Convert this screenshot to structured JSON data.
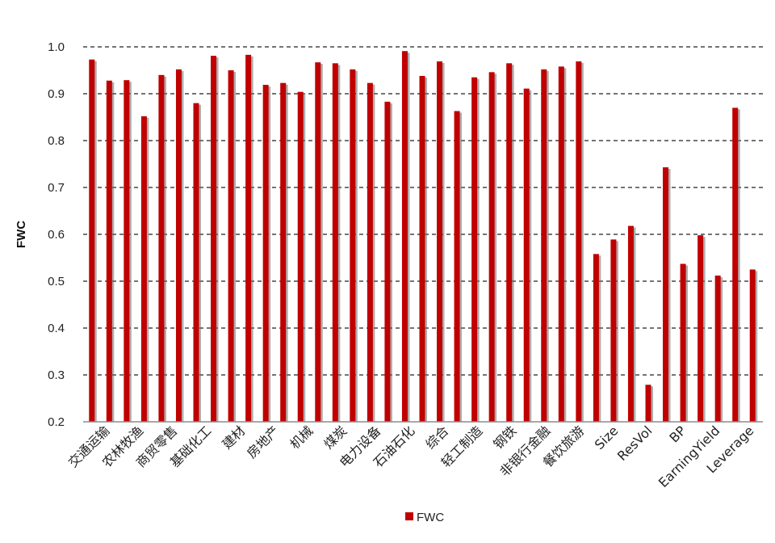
{
  "colors": {
    "bar": "#c00000",
    "bar_shadow": "#6b6b6b",
    "grid": "#222222",
    "axis": "#8c8c8c"
  },
  "chart_data": {
    "type": "bar",
    "title": "",
    "ylabel": "FWC",
    "xlabel": "",
    "ylim": [
      0.2,
      1.0
    ],
    "yticks": [
      "0.2",
      "0.3",
      "0.4",
      "0.5",
      "0.6",
      "0.7",
      "0.8",
      "0.9",
      "1.0"
    ],
    "grid": "horizontal dashed",
    "legend_position": "bottom",
    "tick_label_rotation": "45",
    "tick_labels": [
      "交通运输",
      "农林牧渔",
      "商贸零售",
      "基础化工",
      "建材",
      "房地产",
      "机械",
      "煤炭",
      "电力设备",
      "石油石化",
      "综合",
      "轻工制造",
      "钢铁",
      "非银行金融",
      "餐饮旅游",
      "Size",
      "ResVol",
      "BP",
      "EarningYield",
      "Leverage"
    ],
    "series": [
      {
        "name": "FWC",
        "values": [
          0.973,
          0.928,
          0.929,
          0.852,
          0.94,
          0.952,
          0.88,
          0.981,
          0.95,
          0.983,
          0.919,
          0.923,
          0.904,
          0.967,
          0.965,
          0.952,
          0.923,
          0.883,
          0.991,
          0.938,
          0.969,
          0.863,
          0.935,
          0.946,
          0.965,
          0.911,
          0.952,
          0.958,
          0.969,
          0.558,
          0.589,
          0.618,
          0.279,
          0.743,
          0.537,
          0.598,
          0.512,
          0.87,
          0.525
        ]
      }
    ]
  }
}
